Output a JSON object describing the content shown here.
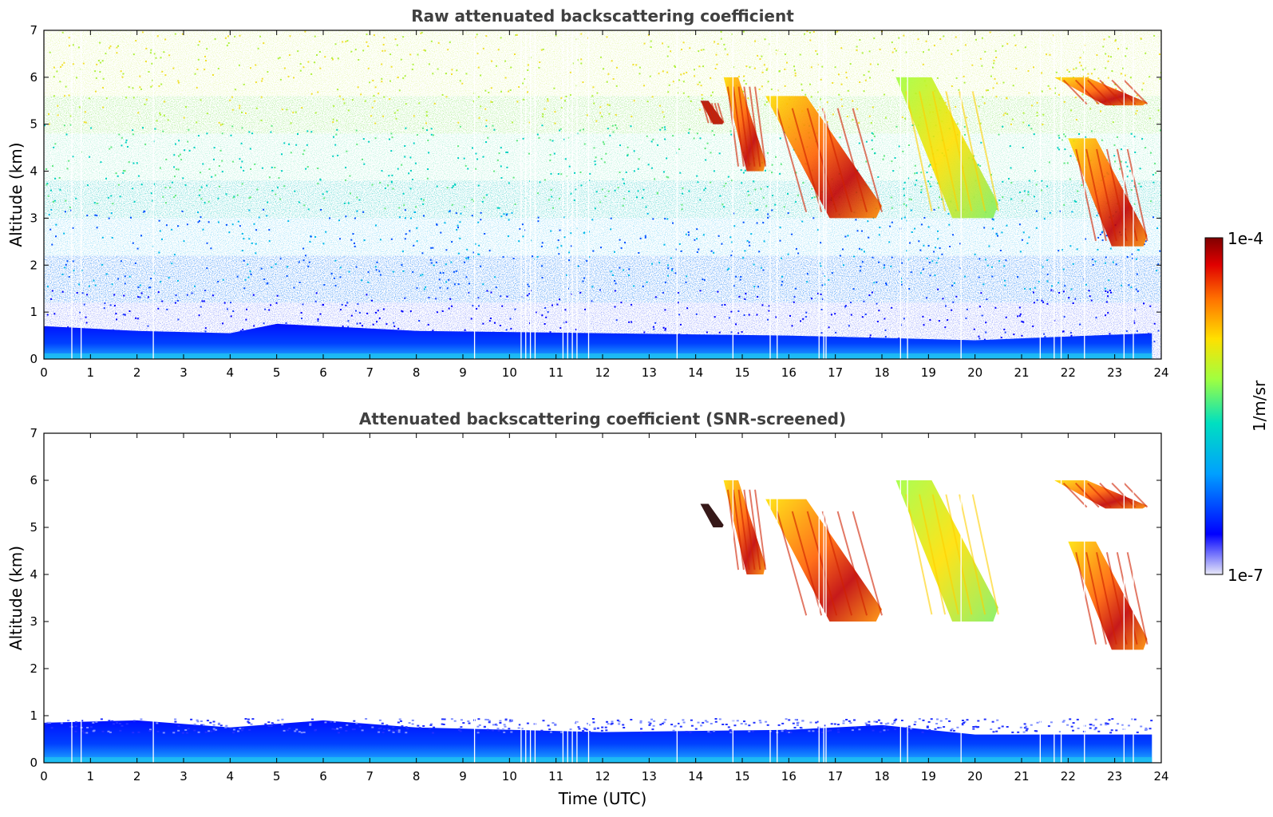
{
  "chart_data": [
    {
      "type": "heatmap",
      "title": "Raw attenuated backscattering coefficient",
      "xlabel": "",
      "ylabel": "Altitude (km)",
      "xlim": [
        0,
        24
      ],
      "ylim": [
        0,
        7
      ],
      "xticks": [
        "0",
        "1",
        "2",
        "3",
        "4",
        "5",
        "6",
        "7",
        "8",
        "9",
        "10",
        "11",
        "12",
        "13",
        "14",
        "15",
        "16",
        "17",
        "18",
        "19",
        "20",
        "21",
        "22",
        "23",
        "24"
      ],
      "yticks": [
        "0",
        "1",
        "2",
        "3",
        "4",
        "5",
        "6",
        "7"
      ],
      "boundary_layer_top_km": [
        {
          "t": 0,
          "z": 0.7
        },
        {
          "t": 2,
          "z": 0.6
        },
        {
          "t": 4,
          "z": 0.55
        },
        {
          "t": 5,
          "z": 0.75
        },
        {
          "t": 6,
          "z": 0.7
        },
        {
          "t": 8,
          "z": 0.6
        },
        {
          "t": 12,
          "z": 0.55
        },
        {
          "t": 16,
          "z": 0.5
        },
        {
          "t": 18,
          "z": 0.45
        },
        {
          "t": 20,
          "z": 0.4
        },
        {
          "t": 23.8,
          "z": 0.55
        }
      ],
      "cloud_features": [
        {
          "t_start": 14.1,
          "t_end": 14.6,
          "z_top": 5.5,
          "z_bottom": 5.0,
          "level": "very high"
        },
        {
          "t_start": 14.6,
          "t_end": 15.5,
          "z_top": 6.0,
          "z_bottom": 4.0,
          "level": "high"
        },
        {
          "t_start": 15.5,
          "t_end": 18.0,
          "z_top": 5.6,
          "z_bottom": 3.0,
          "level": "high"
        },
        {
          "t_start": 18.3,
          "t_end": 20.5,
          "z_top": 6.0,
          "z_bottom": 3.0,
          "level": "moderate"
        },
        {
          "t_start": 21.7,
          "t_end": 23.7,
          "z_top": 6.0,
          "z_bottom": 5.4,
          "level": "high"
        },
        {
          "t_start": 22.0,
          "t_end": 23.7,
          "z_top": 4.7,
          "z_bottom": 2.4,
          "level": "high"
        }
      ]
    },
    {
      "type": "heatmap",
      "title": "Attenuated backscattering coefficient (SNR-screened)",
      "xlabel": "Time (UTC)",
      "ylabel": "Altitude (km)",
      "xlim": [
        0,
        24
      ],
      "ylim": [
        0,
        7
      ],
      "xticks": [
        "0",
        "1",
        "2",
        "3",
        "4",
        "5",
        "6",
        "7",
        "8",
        "9",
        "10",
        "11",
        "12",
        "13",
        "14",
        "15",
        "16",
        "17",
        "18",
        "19",
        "20",
        "21",
        "22",
        "23",
        "24"
      ],
      "yticks": [
        "0",
        "1",
        "2",
        "3",
        "4",
        "5",
        "6",
        "7"
      ],
      "boundary_layer_top_km": [
        {
          "t": 0,
          "z": 0.85
        },
        {
          "t": 2,
          "z": 0.9
        },
        {
          "t": 4,
          "z": 0.75
        },
        {
          "t": 6,
          "z": 0.9
        },
        {
          "t": 8,
          "z": 0.75
        },
        {
          "t": 12,
          "z": 0.65
        },
        {
          "t": 16,
          "z": 0.7
        },
        {
          "t": 18,
          "z": 0.8
        },
        {
          "t": 20,
          "z": 0.6
        },
        {
          "t": 23.8,
          "z": 0.6
        }
      ]
    }
  ],
  "colorbar": {
    "label": "1/m/sr",
    "max_label": "1e-4",
    "min_label": "1e-7",
    "colors": [
      "#e8e8f8",
      "#0000ff",
      "#00a0ff",
      "#00e0c0",
      "#a0ff40",
      "#ffe000",
      "#ff7000",
      "#e00000",
      "#800000"
    ]
  }
}
